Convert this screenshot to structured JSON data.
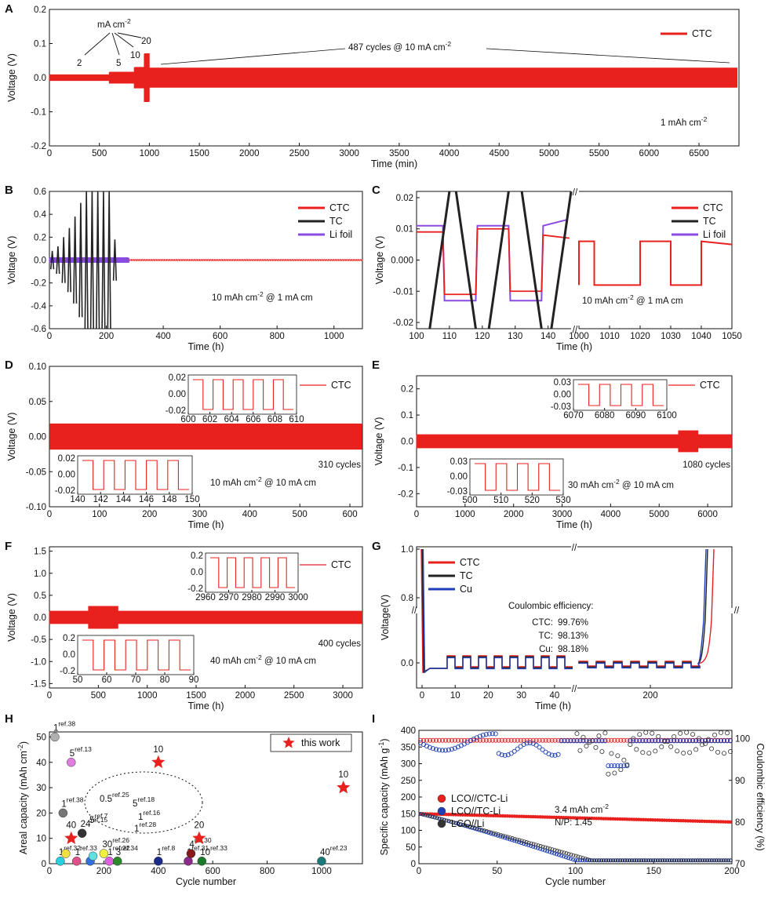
{
  "colors": {
    "ctc": "#e8201e",
    "tc": "#222222",
    "li": "#8a4be2",
    "cu": "#1f3fb8",
    "axis": "#111111"
  },
  "chart_data": [
    {
      "panel": "A",
      "type": "line",
      "xlabel": "Time (min)",
      "ylabel": "Voltage (V)",
      "xlim": [
        0,
        6900
      ],
      "ylim": [
        -0.2,
        0.2
      ],
      "xticks": [
        0,
        500,
        1000,
        1500,
        2000,
        2500,
        3000,
        3500,
        4000,
        4500,
        5000,
        5500,
        6000,
        6500
      ],
      "xtick_labels": [
        "0",
        "500",
        "1000",
        "1500",
        "2000",
        "2500",
        "3000",
        "3500",
        "4000",
        "4500",
        "5000",
        "5500",
        "6000",
        "6500"
      ],
      "yticks": [
        -0.2,
        -0.1,
        0,
        0.1,
        0.2
      ],
      "ytick_labels": [
        "-0.2",
        "-0.1",
        "0.0",
        "0.1",
        "0.2"
      ],
      "legend": [
        "CTC"
      ],
      "annotations": {
        "density_title": "mA cm",
        "density_exp": "-2",
        "d2": "2",
        "d5": "5",
        "d10": "10",
        "d20": "20",
        "cycles": "487 cycles @ 10 mA cm",
        "cycles_exp": "-2",
        "capacity": "1 mAh cm",
        "capacity_exp": "-2"
      },
      "segments": [
        {
          "x": [
            0,
            600
          ],
          "amplitude": 0.008,
          "label": "2"
        },
        {
          "x": [
            600,
            850
          ],
          "amplitude": 0.016,
          "label": "5"
        },
        {
          "x": [
            850,
            950
          ],
          "amplitude": 0.03,
          "label": "10"
        },
        {
          "x": [
            950,
            1000
          ],
          "amplitude": 0.07,
          "label": "20"
        },
        {
          "x": [
            1000,
            6880
          ],
          "amplitude": 0.028,
          "label": "10"
        }
      ]
    },
    {
      "panel": "B",
      "type": "line",
      "xlabel": "Time (h)",
      "ylabel": "Voltage (V)",
      "xlim": [
        0,
        1100
      ],
      "ylim": [
        -0.6,
        0.6
      ],
      "xticks": [
        0,
        200,
        400,
        600,
        800,
        1000
      ],
      "xtick_labels": [
        "0",
        "200",
        "400",
        "600",
        "800",
        "1000"
      ],
      "yticks": [
        -0.6,
        -0.4,
        -0.2,
        0,
        0.2,
        0.4,
        0.6
      ],
      "ytick_labels": [
        "-0.6",
        "-0.4",
        "-0.2",
        "0.0",
        "0.2",
        "0.4",
        "0.6"
      ],
      "legend": [
        "CTC",
        "TC",
        "Li foil"
      ],
      "annotation": "10 mAh cm",
      "annotation_exp1": "-2",
      "annotation_mid": " @ 1 mA cm",
      "annotation_exp2": "-2",
      "tc_peaks_h": [
        10,
        30,
        50,
        70,
        90,
        110,
        130,
        150,
        170,
        190,
        210,
        230
      ],
      "tc_amplitudes_v": [
        0.08,
        0.12,
        0.2,
        0.28,
        0.38,
        0.5,
        0.62,
        0.7,
        0.7,
        0.7,
        0.65,
        0.18
      ]
    },
    {
      "panel": "C",
      "type": "line",
      "xlabel": "Time (h)",
      "ylabel": "Voltage (V)",
      "xlim_left": [
        100,
        147
      ],
      "xlim_right": [
        1000,
        1050
      ],
      "ylim": [
        -0.022,
        0.022
      ],
      "xtick_labels": [
        "100",
        "110",
        "120",
        "130",
        "140",
        "1000",
        "1010",
        "1020",
        "1030",
        "1040",
        "1050"
      ],
      "yticks": [
        -0.02,
        -0.01,
        0,
        0.01,
        0.02
      ],
      "ytick_labels": [
        "-0.02",
        "-0.01",
        "0.000",
        "0.01",
        "0.02"
      ],
      "legend": [
        "CTC",
        "TC",
        "Li foil"
      ],
      "annotation": "10 mAh cm",
      "annotation_exp1": "-2",
      "annotation_mid": " @ 1 mA cm",
      "annotation_exp2": "-2",
      "ctc_plateau_v": 0.009,
      "li_plateau_v": 0.011,
      "right_plateau_v": 0.006
    },
    {
      "panel": "D",
      "type": "line",
      "xlabel": "Time (h)",
      "ylabel": "Voltage (V)",
      "xlim": [
        0,
        625
      ],
      "ylim": [
        -0.1,
        0.1
      ],
      "xticks": [
        0,
        100,
        200,
        300,
        400,
        500,
        600
      ],
      "xtick_labels": [
        "0",
        "100",
        "200",
        "300",
        "400",
        "500",
        "600"
      ],
      "yticks": [
        -0.1,
        -0.05,
        0,
        0.05,
        0.1
      ],
      "ytick_labels": [
        "-0.10",
        "-0.05",
        "0.00",
        "0.05",
        "0.10"
      ],
      "legend": [
        "CTC"
      ],
      "cycles_label": "310 cycles",
      "annotation": "10 mAh cm",
      "annotation_exp1": "-2",
      "annotation_mid": " @ 10 mA cm",
      "annotation_exp2": "-2",
      "inset_top": {
        "xticks": [
          "600",
          "602",
          "604",
          "606",
          "608",
          "610"
        ],
        "yticks": [
          "-0.02",
          "0.00",
          "0.02"
        ]
      },
      "inset_bottom": {
        "xticks": [
          "140",
          "142",
          "144",
          "146",
          "148",
          "150"
        ],
        "yticks": [
          "-0.02",
          "0.00",
          "0.02"
        ]
      }
    },
    {
      "panel": "E",
      "type": "line",
      "xlabel": "Time (h)",
      "ylabel": "Voltage (V)",
      "xlim": [
        0,
        6500
      ],
      "ylim": [
        -0.25,
        0.25
      ],
      "xticks": [
        0,
        1000,
        2000,
        3000,
        4000,
        5000,
        6000
      ],
      "xtick_labels": [
        "0",
        "1000",
        "2000",
        "3000",
        "4000",
        "5000",
        "6000"
      ],
      "yticks": [
        -0.2,
        -0.1,
        0,
        0.1,
        0.2
      ],
      "ytick_labels": [
        "-0.2",
        "-0.1",
        "0.0",
        "0.1",
        "0.2"
      ],
      "legend": [
        "CTC"
      ],
      "cycles_label": "1080 cycles",
      "annotation": "30 mAh cm",
      "annotation_exp1": "-2",
      "annotation_mid": " @ 10 mA cm",
      "annotation_exp2": "-2",
      "inset_top": {
        "xticks": [
          "6070",
          "6080",
          "6090",
          "6100"
        ],
        "yticks": [
          "-0.03",
          "0.00",
          "0.03"
        ]
      },
      "inset_bottom": {
        "xticks": [
          "500",
          "510",
          "520",
          "530"
        ],
        "yticks": [
          "-0.03",
          "0.00",
          "0.03"
        ]
      }
    },
    {
      "panel": "F",
      "type": "line",
      "xlabel": "Time (h)",
      "ylabel": "Voltage (V)",
      "xlim": [
        0,
        3200
      ],
      "ylim": [
        -1.6,
        1.6
      ],
      "xticks": [
        0,
        500,
        1000,
        1500,
        2000,
        2500,
        3000
      ],
      "xtick_labels": [
        "0",
        "500",
        "1000",
        "1500",
        "2000",
        "2500",
        "3000"
      ],
      "yticks": [
        -1.5,
        -1,
        -0.5,
        0,
        0.5,
        1,
        1.5
      ],
      "ytick_labels": [
        "-1.5",
        "-1.0",
        "-0.5",
        "0.0",
        "0.5",
        "1.0",
        "1.5"
      ],
      "legend": [
        "CTC"
      ],
      "cycles_label": "400 cycles",
      "annotation": "40 mAh cm",
      "annotation_exp1": "-2",
      "annotation_mid": " @ 10 mA cm",
      "annotation_exp2": "-2",
      "inset_top": {
        "xticks": [
          "2960",
          "2970",
          "2980",
          "2990",
          "3000"
        ],
        "yticks": [
          "-0.2",
          "0.0",
          "0.2"
        ]
      },
      "inset_bottom": {
        "xticks": [
          "50",
          "60",
          "70",
          "80",
          "90"
        ],
        "yticks": [
          "-0.2",
          "0.0",
          "0.2"
        ]
      }
    },
    {
      "panel": "G",
      "type": "line",
      "xlabel": "Time (h)",
      "ylabel": "Voltage(V)",
      "ytick_labels": [
        "0.0",
        "0.8",
        "1.0"
      ],
      "xtick_labels": [
        "0",
        "10",
        "20",
        "30",
        "40",
        "200"
      ],
      "legend": [
        "CTC",
        "TC",
        "Cu"
      ],
      "ce_title": "Coulombic efficiency:",
      "ce": [
        {
          "name": "CTC:",
          "value": "99.76%"
        },
        {
          "name": "TC:",
          "value": "98.13%"
        },
        {
          "name": "Cu:",
          "value": "98.18%"
        }
      ]
    },
    {
      "panel": "H",
      "type": "scatter",
      "xlabel": "Cycle number",
      "ylabel": "Areal capacity (mAh cm",
      "ylabel_exp": "-2",
      "ylabel_end": ")",
      "xlim": [
        0,
        1150
      ],
      "ylim": [
        0,
        52
      ],
      "xticks": [
        0,
        200,
        400,
        600,
        800,
        1000
      ],
      "xtick_labels": [
        "0",
        "200",
        "400",
        "600",
        "800",
        "1000"
      ],
      "yticks": [
        0,
        10,
        20,
        30,
        40,
        50
      ],
      "ytick_labels": [
        "0",
        "10",
        "20",
        "30",
        "40",
        "50"
      ],
      "legend": [
        "this work"
      ],
      "this_work": [
        {
          "x": 400,
          "y": 40,
          "label": "10"
        },
        {
          "x": 1080,
          "y": 30,
          "label": "10"
        },
        {
          "x": 550,
          "y": 10,
          "label": "20"
        },
        {
          "x": 80,
          "y": 10,
          "label": "40"
        }
      ],
      "refs": [
        {
          "x": 20,
          "y": 50,
          "num": "1",
          "ref": "ref.38",
          "color": "#b0b0b0",
          "numColor": "#111"
        },
        {
          "x": 80,
          "y": 40,
          "num": "5",
          "ref": "ref.13",
          "color": "#e07ee0",
          "numColor": "#111"
        },
        {
          "x": 50,
          "y": 20,
          "num": "1",
          "ref": "ref.38",
          "color": "#777777",
          "numColor": "#111"
        },
        {
          "x": 120,
          "y": 12,
          "num": "24",
          "ref": "ref.15",
          "color": "#333333",
          "numColor": "#111"
        },
        {
          "x": 40,
          "y": 1,
          "num": "1",
          "ref": "ref.32",
          "color": "#2ad0e0",
          "numColor": "#111"
        },
        {
          "x": 60,
          "y": 4,
          "num": "",
          "ref": "",
          "color": "#f0e040",
          "numColor": "#111"
        },
        {
          "x": 100,
          "y": 1,
          "num": "1",
          "ref": "ref.33",
          "color": "#e0508a",
          "numColor": "#111"
        },
        {
          "x": 150,
          "y": 1,
          "num": "",
          "ref": "",
          "color": "#3070e0",
          "numColor": "#111"
        },
        {
          "x": 160,
          "y": 3,
          "num": "",
          "ref": "",
          "color": "#60e0e0",
          "numColor": "#111"
        },
        {
          "x": 200,
          "y": 4,
          "num": "30",
          "ref": "ref.26",
          "color": "#f0f040",
          "numColor": "#111"
        },
        {
          "x": 220,
          "y": 1,
          "num": "1",
          "ref": "ref.22",
          "color": "#e060e0",
          "numColor": "#111"
        },
        {
          "x": 250,
          "y": 1,
          "num": "3",
          "ref": "ref.34",
          "color": "#2a8a2a",
          "numColor": "#111"
        },
        {
          "x": 400,
          "y": 1,
          "num": "1",
          "ref": "ref.8",
          "color": "#1a2a8a",
          "numColor": "#111"
        },
        {
          "x": 510,
          "y": 1,
          "num": "1",
          "ref": "ref.31",
          "color": "#8a2a8a",
          "numColor": "#111"
        },
        {
          "x": 520,
          "y": 4,
          "num": "4",
          "ref": "ref.30",
          "color": "#8a1a1a",
          "numColor": "#111"
        },
        {
          "x": 560,
          "y": 1,
          "num": "10",
          "ref": "ref.33",
          "color": "#1a7a2a",
          "numColor": "#111"
        },
        {
          "x": 1000,
          "y": 1,
          "num": "40",
          "ref": "ref.23",
          "color": "#1a7a7a",
          "numColor": "#111"
        }
      ],
      "ellipse_labels": [
        {
          "num": "0.5",
          "ref": "ref.25",
          "color": "#111111"
        },
        {
          "num": "5",
          "ref": "ref.7",
          "color": "#e8201e"
        },
        {
          "num": "5",
          "ref": "ref.18",
          "color": "#1f3fb8"
        },
        {
          "num": "1",
          "ref": "ref.16",
          "color": "#2a9a2a"
        },
        {
          "num": "1",
          "ref": "ref.28",
          "color": "#20b0c0"
        }
      ]
    },
    {
      "panel": "I",
      "type": "scatter",
      "xlabel": "Cycle number",
      "ylabel_left": "Specific capacity (mAh g",
      "ylabel_left_exp": "-1",
      "ylabel_left_end": ")",
      "ylabel_right": "Coulombic efficiency (%)",
      "xlim": [
        0,
        200
      ],
      "ylim_left": [
        0,
        400
      ],
      "ylim_right": [
        70,
        102
      ],
      "xticks": [
        0,
        50,
        100,
        150,
        200
      ],
      "xtick_labels": [
        "0",
        "50",
        "100",
        "150",
        "200"
      ],
      "yticks_left": [
        0,
        50,
        100,
        150,
        200,
        250,
        300,
        350,
        400
      ],
      "ytick_labels_left": [
        "0",
        "50",
        "100",
        "150",
        "200",
        "250",
        "300",
        "350",
        "400"
      ],
      "yticks_right": [
        70,
        80,
        90,
        100
      ],
      "ytick_labels_right": [
        "70",
        "80",
        "90",
        "100"
      ],
      "legend": [
        "LCO//CTC-Li",
        "LCO//TC-Li",
        "LCO//Li"
      ],
      "legend_colors": [
        "#e8201e",
        "#1f3fb8",
        "#333333"
      ],
      "info_line1": "3.4 mAh cm",
      "info_line1_exp": "-2",
      "info_line2": "N/P: 1.45",
      "ctc_capacity_start_end": [
        150,
        125
      ],
      "tc_capacity_start_end": [
        150,
        10
      ],
      "li_capacity_start_end": [
        150,
        10
      ]
    }
  ]
}
